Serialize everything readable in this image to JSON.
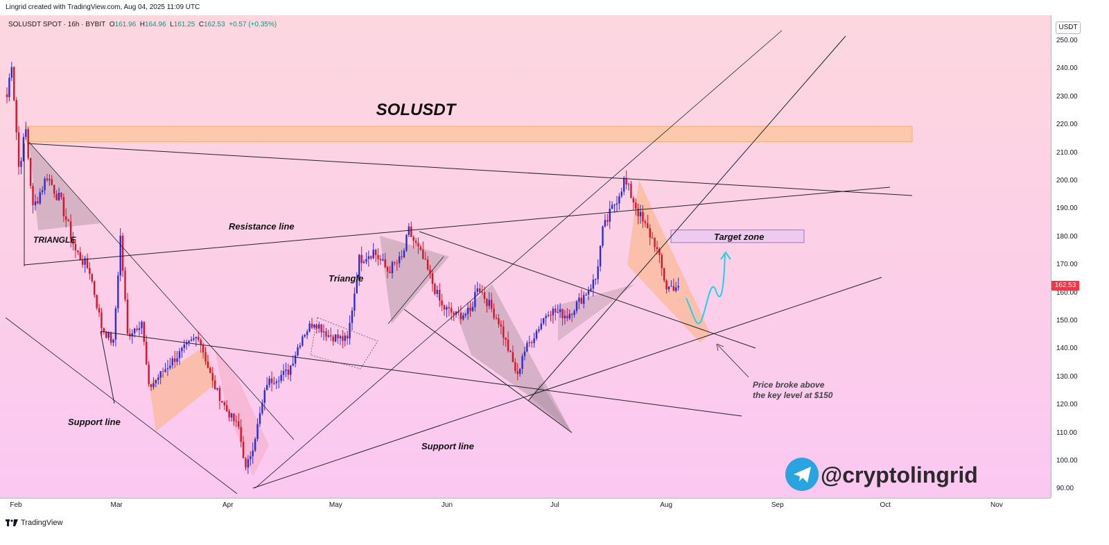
{
  "header": {
    "attribution": "Lingrid created with TradingView.com, Aug 04, 2025 11:09 UTC"
  },
  "symbol_bar": {
    "symbol": "SOLUSDT SPOT · 16h · BYBIT",
    "open_label": "O",
    "open": "161.96",
    "high_label": "H",
    "high": "164.96",
    "low_label": "L",
    "low": "161.25",
    "close_label": "C",
    "close": "162.53",
    "change": "+0.57 (+0.35%)"
  },
  "price_axis": {
    "unit": "USDT",
    "last_price": "162.53",
    "last_price_color": "#f23645"
  },
  "time_axis": {
    "labels": [
      "Feb",
      "Mar",
      "Apr",
      "May",
      "Jun",
      "Jul",
      "Aug",
      "Sep",
      "Oct",
      "Nov"
    ]
  },
  "annotations": {
    "title": "SOLUSDT",
    "triangle_upper": "TRIANGLE",
    "triangle_mid": "Triangle",
    "resistance": "Resistance line",
    "support_left": "Support line",
    "support_bottom": "Support line",
    "target": "Target zone",
    "breakout_line1": "Price broke above",
    "breakout_line2": "the key level at $150",
    "watermark": "@cryptolingrid"
  },
  "footer": {
    "brand": "TradingView"
  },
  "colors": {
    "up_candle": "#2c2cd6",
    "down_candle": "#d4142a",
    "bg_top": "#fcd7df",
    "bg_bottom": "#fbc8f2",
    "telegram": "#2aa4e0",
    "projection": "#19d3e6"
  },
  "chart_data": {
    "type": "candlestick",
    "title": "SOLUSDT",
    "ylabel": "USDT",
    "ylim": [
      85,
      255
    ],
    "y_ticks": [
      90,
      100,
      110,
      120,
      130,
      140,
      150,
      160,
      170,
      180,
      190,
      200,
      210,
      220,
      230,
      240,
      250
    ],
    "x_ticks": [
      "Feb",
      "Mar",
      "Apr",
      "May",
      "Jun",
      "Jul",
      "Aug",
      "Sep",
      "Oct",
      "Nov"
    ],
    "grid": false,
    "last_price": 162.53,
    "ohlc": {
      "open": 161.96,
      "high": 164.96,
      "low": 161.25,
      "close": 162.53,
      "change": 0.57,
      "change_pct": 0.35
    },
    "price_path": [
      [
        "Feb 01",
        230
      ],
      [
        "Feb 02",
        243
      ],
      [
        "Feb 04",
        205
      ],
      [
        "Feb 06",
        218
      ],
      [
        "Feb 08",
        190
      ],
      [
        "Feb 12",
        202
      ],
      [
        "Feb 16",
        192
      ],
      [
        "Feb 20",
        175
      ],
      [
        "Feb 24",
        168
      ],
      [
        "Feb 27",
        148
      ],
      [
        "Mar 02",
        142
      ],
      [
        "Mar 04",
        180
      ],
      [
        "Mar 06",
        145
      ],
      [
        "Mar 10",
        150
      ],
      [
        "Mar 12",
        126
      ],
      [
        "Mar 18",
        135
      ],
      [
        "Mar 22",
        140
      ],
      [
        "Mar 26",
        145
      ],
      [
        "Mar 30",
        128
      ],
      [
        "Apr 03",
        118
      ],
      [
        "Apr 06",
        112
      ],
      [
        "Apr 08",
        97
      ],
      [
        "Apr 10",
        105
      ],
      [
        "Apr 14",
        128
      ],
      [
        "Apr 20",
        132
      ],
      [
        "Apr 24",
        145
      ],
      [
        "Apr 27",
        150
      ],
      [
        "May 01",
        145
      ],
      [
        "May 06",
        143
      ],
      [
        "May 09",
        172
      ],
      [
        "May 13",
        175
      ],
      [
        "May 17",
        168
      ],
      [
        "May 21",
        172
      ],
      [
        "May 23",
        182
      ],
      [
        "May 27",
        172
      ],
      [
        "Jun 01",
        155
      ],
      [
        "Jun 05",
        152
      ],
      [
        "Jun 09",
        153
      ],
      [
        "Jun 11",
        163
      ],
      [
        "Jun 17",
        150
      ],
      [
        "Jun 22",
        130
      ],
      [
        "Jun 23",
        138
      ],
      [
        "Jun 26",
        145
      ],
      [
        "Jun 30",
        154
      ],
      [
        "Jul 05",
        152
      ],
      [
        "Jul 09",
        158
      ],
      [
        "Jul 13",
        165
      ],
      [
        "Jul 15",
        182
      ],
      [
        "Jul 21",
        200
      ],
      [
        "Jul 23",
        195
      ],
      [
        "Jul 26",
        185
      ],
      [
        "Jul 29",
        178
      ],
      [
        "Aug 01",
        162
      ],
      [
        "Aug 04",
        162.53
      ]
    ],
    "zones": [
      {
        "label": "",
        "ymin": 214,
        "ymax": 219.5
      },
      {
        "label": "Target zone",
        "ymin": 178,
        "ymax": 182.5
      }
    ],
    "lines": [
      {
        "label": "Resistance line"
      },
      {
        "label": "Support line"
      },
      {
        "label": "Support line"
      }
    ],
    "annotations": [
      "SOLUSDT",
      "TRIANGLE",
      "Triangle",
      "Resistance line",
      "Support line",
      "Support line",
      "Target zone",
      "Price broke above the key level at $150"
    ]
  }
}
